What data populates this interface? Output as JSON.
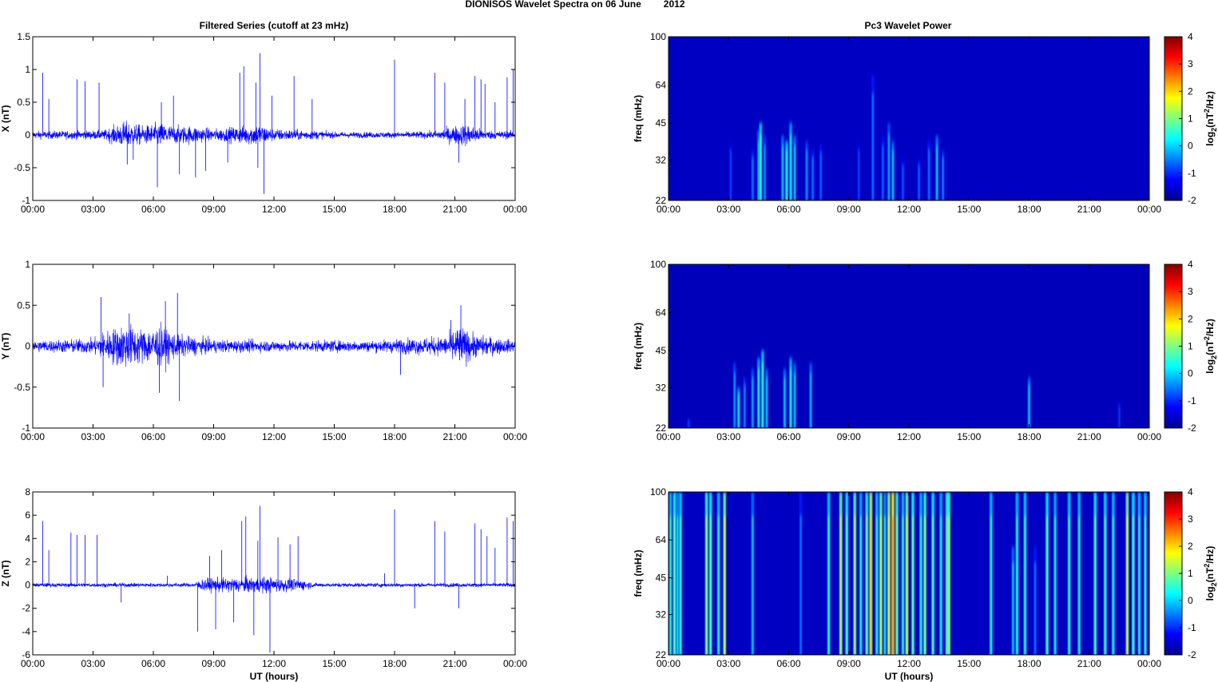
{
  "figure": {
    "title_left": "DIONISOS Wavelet Spectra on 06 June",
    "title_year": "2012",
    "left_title": "Filtered Series (cutoff at 23 mHz)",
    "right_title": "Pc3 Wavelet Power",
    "xlabel": "UT (hours)"
  },
  "chart_data": [
    {
      "type": "line",
      "panel": "X",
      "ylabel": "X (nT)",
      "xlabel": "",
      "x_ticks": [
        "00:00",
        "03:00",
        "06:00",
        "09:00",
        "12:00",
        "15:00",
        "18:00",
        "21:00",
        "00:00"
      ],
      "xlim": [
        0,
        24
      ],
      "ylim": [
        -1,
        1.5
      ],
      "y_ticks": [
        -1,
        -0.5,
        0,
        0.5,
        1,
        1.5
      ],
      "y_tick_labels": [
        "-1",
        "-0.5",
        "0",
        "0.5",
        "1",
        "1.5"
      ],
      "color": "#0000ff",
      "noise_profile": [
        [
          0,
          0.05
        ],
        [
          3.5,
          0.06
        ],
        [
          4.6,
          0.18
        ],
        [
          5.5,
          0.12
        ],
        [
          6.3,
          0.16
        ],
        [
          7.0,
          0.12
        ],
        [
          8.0,
          0.12
        ],
        [
          9.0,
          0.08
        ],
        [
          10.5,
          0.12
        ],
        [
          11.2,
          0.15
        ],
        [
          12.0,
          0.08
        ],
        [
          14.0,
          0.06
        ],
        [
          15.0,
          0.04
        ],
        [
          18.0,
          0.04
        ],
        [
          20.0,
          0.05
        ],
        [
          21.0,
          0.12
        ],
        [
          21.6,
          0.15
        ],
        [
          22.5,
          0.06
        ],
        [
          24,
          0.05
        ]
      ],
      "spikes": [
        {
          "x": 0.5,
          "y": 0.95
        },
        {
          "x": 0.8,
          "y": 0.55
        },
        {
          "x": 2.2,
          "y": 0.85
        },
        {
          "x": 2.6,
          "y": 0.82
        },
        {
          "x": 3.3,
          "y": 0.8
        },
        {
          "x": 4.7,
          "y": -0.45
        },
        {
          "x": 5.0,
          "y": -0.38
        },
        {
          "x": 6.2,
          "y": -0.8
        },
        {
          "x": 6.4,
          "y": 0.5
        },
        {
          "x": 7.0,
          "y": 0.6
        },
        {
          "x": 7.3,
          "y": -0.6
        },
        {
          "x": 8.1,
          "y": -0.65
        },
        {
          "x": 8.6,
          "y": -0.55
        },
        {
          "x": 9.7,
          "y": -0.42
        },
        {
          "x": 10.3,
          "y": 0.95
        },
        {
          "x": 10.5,
          "y": 1.05
        },
        {
          "x": 11.1,
          "y": 0.8
        },
        {
          "x": 11.2,
          "y": -0.5
        },
        {
          "x": 11.3,
          "y": 1.25
        },
        {
          "x": 11.5,
          "y": -0.9
        },
        {
          "x": 11.9,
          "y": 0.6
        },
        {
          "x": 13.0,
          "y": 0.9
        },
        {
          "x": 13.9,
          "y": 0.55
        },
        {
          "x": 18.0,
          "y": 1.15
        },
        {
          "x": 20.0,
          "y": 0.95
        },
        {
          "x": 20.5,
          "y": 0.8
        },
        {
          "x": 21.2,
          "y": -0.42
        },
        {
          "x": 21.5,
          "y": 0.55
        },
        {
          "x": 22.0,
          "y": 0.9
        },
        {
          "x": 22.3,
          "y": 0.85
        },
        {
          "x": 22.5,
          "y": 0.78
        },
        {
          "x": 23.0,
          "y": 0.5
        },
        {
          "x": 23.6,
          "y": 0.88
        },
        {
          "x": 23.9,
          "y": 1.0
        }
      ]
    },
    {
      "type": "line",
      "panel": "Y",
      "ylabel": "Y (nT)",
      "xlabel": "",
      "x_ticks": [
        "00:00",
        "03:00",
        "06:00",
        "09:00",
        "12:00",
        "15:00",
        "18:00",
        "21:00",
        "00:00"
      ],
      "xlim": [
        0,
        24
      ],
      "ylim": [
        -1,
        1
      ],
      "y_ticks": [
        -1,
        -0.5,
        0,
        0.5,
        1
      ],
      "y_tick_labels": [
        "-1",
        "-0.5",
        "0",
        "0.5",
        "1"
      ],
      "color": "#0000ff",
      "noise_profile": [
        [
          0,
          0.06
        ],
        [
          3.0,
          0.08
        ],
        [
          3.5,
          0.15
        ],
        [
          4.6,
          0.24
        ],
        [
          5.5,
          0.18
        ],
        [
          6.4,
          0.22
        ],
        [
          7.2,
          0.12
        ],
        [
          9.0,
          0.07
        ],
        [
          12.0,
          0.06
        ],
        [
          17.0,
          0.06
        ],
        [
          18.5,
          0.08
        ],
        [
          20.5,
          0.1
        ],
        [
          21.2,
          0.22
        ],
        [
          22.0,
          0.12
        ],
        [
          24,
          0.06
        ]
      ],
      "spikes": [
        {
          "x": 3.4,
          "y": 0.6
        },
        {
          "x": 3.5,
          "y": -0.5
        },
        {
          "x": 4.8,
          "y": 0.4
        },
        {
          "x": 6.3,
          "y": -0.57
        },
        {
          "x": 6.6,
          "y": 0.55
        },
        {
          "x": 7.2,
          "y": 0.65
        },
        {
          "x": 7.3,
          "y": -0.67
        },
        {
          "x": 18.3,
          "y": -0.35
        },
        {
          "x": 20.8,
          "y": 0.32
        },
        {
          "x": 21.3,
          "y": 0.5
        }
      ]
    },
    {
      "type": "line",
      "panel": "Z",
      "ylabel": "Z (nT)",
      "xlabel": "UT (hours)",
      "x_ticks": [
        "00:00",
        "03:00",
        "06:00",
        "09:00",
        "12:00",
        "15:00",
        "18:00",
        "21:00",
        "00:00"
      ],
      "xlim": [
        0,
        24
      ],
      "ylim": [
        -6,
        8
      ],
      "y_ticks": [
        -6,
        -4,
        -2,
        0,
        2,
        4,
        6,
        8
      ],
      "y_tick_labels": [
        "-6",
        "-4",
        "-2",
        "0",
        "2",
        "4",
        "6",
        "8"
      ],
      "color": "#0000ff",
      "noise_profile": [
        [
          0,
          0.15
        ],
        [
          8.0,
          0.15
        ],
        [
          8.5,
          0.5
        ],
        [
          11.5,
          0.6
        ],
        [
          13.5,
          0.4
        ],
        [
          14.0,
          0.15
        ],
        [
          24,
          0.15
        ]
      ],
      "spikes": [
        {
          "x": 0.5,
          "y": 5.5
        },
        {
          "x": 0.8,
          "y": 3.0
        },
        {
          "x": 1.9,
          "y": 4.5
        },
        {
          "x": 2.2,
          "y": 4.3
        },
        {
          "x": 2.6,
          "y": 4.3
        },
        {
          "x": 3.2,
          "y": 4.3
        },
        {
          "x": 4.4,
          "y": -1.5
        },
        {
          "x": 6.7,
          "y": 0.8
        },
        {
          "x": 8.2,
          "y": -4.0
        },
        {
          "x": 8.8,
          "y": 2.5
        },
        {
          "x": 9.1,
          "y": -3.8
        },
        {
          "x": 9.4,
          "y": 3.0
        },
        {
          "x": 10.0,
          "y": -3.2
        },
        {
          "x": 10.4,
          "y": 5.5
        },
        {
          "x": 10.6,
          "y": 5.9
        },
        {
          "x": 11.0,
          "y": -4.3
        },
        {
          "x": 11.2,
          "y": 3.8
        },
        {
          "x": 11.3,
          "y": 6.8
        },
        {
          "x": 11.8,
          "y": -5.8
        },
        {
          "x": 12.2,
          "y": 4.1
        },
        {
          "x": 12.8,
          "y": 3.5
        },
        {
          "x": 13.2,
          "y": 4.2
        },
        {
          "x": 17.5,
          "y": 1.0
        },
        {
          "x": 18.0,
          "y": 6.5
        },
        {
          "x": 19.0,
          "y": -2.0
        },
        {
          "x": 20.0,
          "y": 5.5
        },
        {
          "x": 20.5,
          "y": 4.6
        },
        {
          "x": 21.2,
          "y": -2.0
        },
        {
          "x": 22.0,
          "y": 5.3
        },
        {
          "x": 22.3,
          "y": 4.8
        },
        {
          "x": 22.6,
          "y": 4.2
        },
        {
          "x": 23.0,
          "y": 3.2
        },
        {
          "x": 23.6,
          "y": 5.8
        },
        {
          "x": 23.9,
          "y": 5.5
        }
      ]
    },
    {
      "type": "heatmap",
      "panel": "X",
      "ylabel": "freq (mHz)",
      "xlabel": "",
      "colorbar_label": "log2(nT2/Hz)",
      "colorbar_ticks": [
        -2,
        -1,
        0,
        1,
        2,
        3,
        4
      ],
      "colorbar_tick_labels": [
        "-2",
        "-1",
        "0",
        "1",
        "2",
        "3",
        "4"
      ],
      "x_ticks": [
        "00:00",
        "03:00",
        "06:00",
        "09:00",
        "12:00",
        "15:00",
        "18:00",
        "21:00",
        "00:00"
      ],
      "xlim": [
        0,
        24
      ],
      "ylim": [
        22,
        100
      ],
      "y_ticks": [
        22,
        32,
        45,
        64,
        100
      ],
      "y_tick_labels": [
        "22",
        "32",
        "45",
        "64",
        "100"
      ],
      "background_level": -1.6,
      "streaks": [
        {
          "t": 3.1,
          "f": 38,
          "v": -0.8
        },
        {
          "t": 4.2,
          "f": 35,
          "v": -0.5
        },
        {
          "t": 4.5,
          "f": 42,
          "v": 0.0
        },
        {
          "t": 4.6,
          "f": 45,
          "v": 0.6
        },
        {
          "t": 4.8,
          "f": 40,
          "v": -0.3
        },
        {
          "t": 5.7,
          "f": 40,
          "v": 0.0
        },
        {
          "t": 5.9,
          "f": 38,
          "v": 0.5
        },
        {
          "t": 6.1,
          "f": 45,
          "v": 0.3
        },
        {
          "t": 6.3,
          "f": 40,
          "v": 0.0
        },
        {
          "t": 6.9,
          "f": 38,
          "v": -0.3
        },
        {
          "t": 7.2,
          "f": 35,
          "v": -0.5
        },
        {
          "t": 7.6,
          "f": 37,
          "v": -0.6
        },
        {
          "t": 9.5,
          "f": 38,
          "v": -0.8
        },
        {
          "t": 10.2,
          "f": 70,
          "v": -0.5
        },
        {
          "t": 10.7,
          "f": 40,
          "v": -0.6
        },
        {
          "t": 11.0,
          "f": 45,
          "v": -0.2
        },
        {
          "t": 11.2,
          "f": 38,
          "v": 0.0
        },
        {
          "t": 11.7,
          "f": 32,
          "v": -0.7
        },
        {
          "t": 12.5,
          "f": 32,
          "v": -0.6
        },
        {
          "t": 13.0,
          "f": 38,
          "v": -0.5
        },
        {
          "t": 13.4,
          "f": 40,
          "v": 0.0
        },
        {
          "t": 13.7,
          "f": 35,
          "v": -0.4
        }
      ]
    },
    {
      "type": "heatmap",
      "panel": "Y",
      "ylabel": "freq (mHz)",
      "xlabel": "",
      "colorbar_label": "log2(nT2/Hz)",
      "colorbar_ticks": [
        -2,
        -1,
        0,
        1,
        2,
        3,
        4
      ],
      "colorbar_tick_labels": [
        "-2",
        "-1",
        "0",
        "1",
        "2",
        "3",
        "4"
      ],
      "x_ticks": [
        "00:00",
        "03:00",
        "06:00",
        "09:00",
        "12:00",
        "15:00",
        "18:00",
        "21:00",
        "00:00"
      ],
      "xlim": [
        0,
        24
      ],
      "ylim": [
        22,
        100
      ],
      "y_ticks": [
        22,
        32,
        45,
        64,
        100
      ],
      "y_tick_labels": [
        "22",
        "32",
        "45",
        "64",
        "100"
      ],
      "background_level": -1.65,
      "streaks": [
        {
          "t": 1.0,
          "f": 24,
          "v": -0.8
        },
        {
          "t": 3.3,
          "f": 40,
          "v": -0.3
        },
        {
          "t": 3.5,
          "f": 32,
          "v": 0.2
        },
        {
          "t": 3.8,
          "f": 35,
          "v": -0.4
        },
        {
          "t": 4.2,
          "f": 38,
          "v": -0.2
        },
        {
          "t": 4.5,
          "f": 42,
          "v": 0.3
        },
        {
          "t": 4.7,
          "f": 45,
          "v": 0.5
        },
        {
          "t": 4.9,
          "f": 38,
          "v": 0.0
        },
        {
          "t": 5.8,
          "f": 38,
          "v": 0.0
        },
        {
          "t": 6.1,
          "f": 42,
          "v": 0.4
        },
        {
          "t": 6.3,
          "f": 40,
          "v": 0.0
        },
        {
          "t": 7.1,
          "f": 40,
          "v": -0.1
        },
        {
          "t": 18.0,
          "f": 35,
          "v": 0.0
        },
        {
          "t": 22.5,
          "f": 28,
          "v": -0.9
        }
      ]
    },
    {
      "type": "heatmap",
      "panel": "Z",
      "ylabel": "freq (mHz)",
      "xlabel": "UT (hours)",
      "colorbar_label": "log2(nT2/Hz)",
      "colorbar_ticks": [
        -2,
        -1,
        0,
        1,
        2,
        3,
        4
      ],
      "colorbar_tick_labels": [
        "-2",
        "-1",
        "0",
        "1",
        "2",
        "3",
        "4"
      ],
      "x_ticks": [
        "00:00",
        "03:00",
        "06:00",
        "09:00",
        "12:00",
        "15:00",
        "18:00",
        "21:00",
        "00:00"
      ],
      "xlim": [
        0,
        24
      ],
      "ylim": [
        22,
        100
      ],
      "y_ticks": [
        22,
        32,
        45,
        64,
        100
      ],
      "y_tick_labels": [
        "22",
        "32",
        "45",
        "64",
        "100"
      ],
      "background_level": -1.6,
      "streaks": [
        {
          "t": 0.1,
          "f": 100,
          "v": 0.5
        },
        {
          "t": 0.3,
          "f": 100,
          "v": 1.0
        },
        {
          "t": 0.45,
          "f": 100,
          "v": 0.2
        },
        {
          "t": 0.6,
          "f": 100,
          "v": 0.6
        },
        {
          "t": 1.9,
          "f": 100,
          "v": 1.2
        },
        {
          "t": 2.1,
          "f": 100,
          "v": 0.8
        },
        {
          "t": 2.5,
          "f": 100,
          "v": 0.5
        },
        {
          "t": 2.8,
          "f": 100,
          "v": 1.6
        },
        {
          "t": 4.2,
          "f": 100,
          "v": 0.0
        },
        {
          "t": 6.6,
          "f": 100,
          "v": -0.5
        },
        {
          "t": 8.0,
          "f": 100,
          "v": 0.6
        },
        {
          "t": 8.6,
          "f": 100,
          "v": 1.5
        },
        {
          "t": 8.9,
          "f": 100,
          "v": 0.8
        },
        {
          "t": 9.3,
          "f": 100,
          "v": 1.4
        },
        {
          "t": 9.6,
          "f": 100,
          "v": 0.4
        },
        {
          "t": 9.9,
          "f": 100,
          "v": 1.0
        },
        {
          "t": 10.1,
          "f": 100,
          "v": 2.0
        },
        {
          "t": 10.4,
          "f": 100,
          "v": 0.5
        },
        {
          "t": 10.6,
          "f": 100,
          "v": 1.5
        },
        {
          "t": 10.8,
          "f": 100,
          "v": 0.2
        },
        {
          "t": 11.0,
          "f": 100,
          "v": 1.8
        },
        {
          "t": 11.2,
          "f": 100,
          "v": 2.4
        },
        {
          "t": 11.4,
          "f": 100,
          "v": 1.0
        },
        {
          "t": 11.7,
          "f": 100,
          "v": 0.5
        },
        {
          "t": 11.9,
          "f": 100,
          "v": 1.6
        },
        {
          "t": 12.2,
          "f": 100,
          "v": 1.0
        },
        {
          "t": 12.6,
          "f": 100,
          "v": 0.5
        },
        {
          "t": 12.8,
          "f": 100,
          "v": 1.2
        },
        {
          "t": 13.2,
          "f": 100,
          "v": 0.8
        },
        {
          "t": 13.6,
          "f": 100,
          "v": 0.4
        },
        {
          "t": 13.9,
          "f": 100,
          "v": 0.9
        },
        {
          "t": 14.0,
          "f": 100,
          "v": 1.2
        },
        {
          "t": 16.1,
          "f": 100,
          "v": 0.5
        },
        {
          "t": 17.2,
          "f": 60,
          "v": 0.0
        },
        {
          "t": 17.4,
          "f": 100,
          "v": 0.5
        },
        {
          "t": 17.8,
          "f": 100,
          "v": 0.6
        },
        {
          "t": 18.3,
          "f": 60,
          "v": -0.5
        },
        {
          "t": 18.9,
          "f": 100,
          "v": 0.8
        },
        {
          "t": 19.3,
          "f": 100,
          "v": 0.4
        },
        {
          "t": 20.0,
          "f": 100,
          "v": 0.6
        },
        {
          "t": 20.5,
          "f": 100,
          "v": 0.5
        },
        {
          "t": 21.3,
          "f": 100,
          "v": 0.8
        },
        {
          "t": 21.8,
          "f": 100,
          "v": 0.7
        },
        {
          "t": 22.2,
          "f": 100,
          "v": 0.5
        },
        {
          "t": 22.9,
          "f": 100,
          "v": 1.6
        },
        {
          "t": 23.2,
          "f": 100,
          "v": 0.8
        },
        {
          "t": 23.5,
          "f": 100,
          "v": 0.5
        },
        {
          "t": 23.8,
          "f": 100,
          "v": 0.6
        }
      ]
    }
  ]
}
